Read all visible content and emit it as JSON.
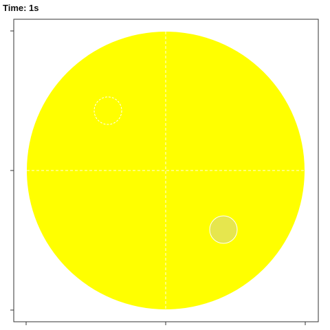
{
  "header": {
    "time_label": "Time: 1s"
  },
  "colors": {
    "arena_fill": "#ffff00",
    "target_fill": "#e6e64e",
    "guide_line": "#ffffff",
    "frame": "#333333",
    "background": "#ffffff"
  },
  "arena": {
    "shape": "circle",
    "quadrant_lines": "dashed"
  },
  "markers": [
    {
      "name": "start-marker",
      "style": "dashed-outline"
    },
    {
      "name": "target-platform",
      "style": "filled"
    }
  ]
}
